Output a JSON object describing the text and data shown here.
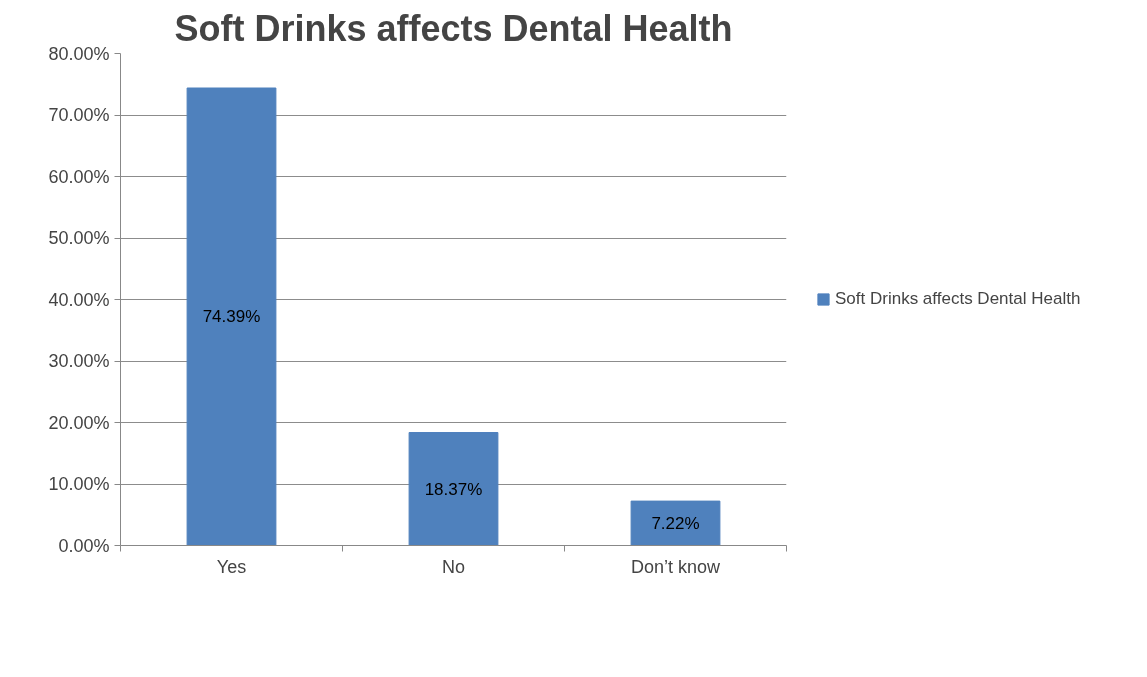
{
  "chart_data": {
    "type": "bar",
    "title": "Soft Drinks affects Dental Health",
    "categories": [
      "Yes",
      "No",
      "Don’t know"
    ],
    "series": [
      {
        "name": "Soft Drinks affects Dental Health",
        "color": "#4f81bd",
        "values": [
          74.39,
          18.37,
          7.22
        ],
        "value_labels": [
          "74.39%",
          "18.37%",
          "7.22%"
        ]
      }
    ],
    "ylim": [
      0,
      80
    ],
    "yticks": [
      {
        "value": 0,
        "label": "0.00%"
      },
      {
        "value": 10,
        "label": "10.00%"
      },
      {
        "value": 20,
        "label": "20.00%"
      },
      {
        "value": 30,
        "label": "30.00%"
      },
      {
        "value": 40,
        "label": "40.00%"
      },
      {
        "value": 50,
        "label": "50.00%"
      },
      {
        "value": 60,
        "label": "60.00%"
      },
      {
        "value": 70,
        "label": "70.00%"
      },
      {
        "value": 80,
        "label": "80.00%"
      }
    ],
    "grid": "y",
    "legend": "right"
  }
}
